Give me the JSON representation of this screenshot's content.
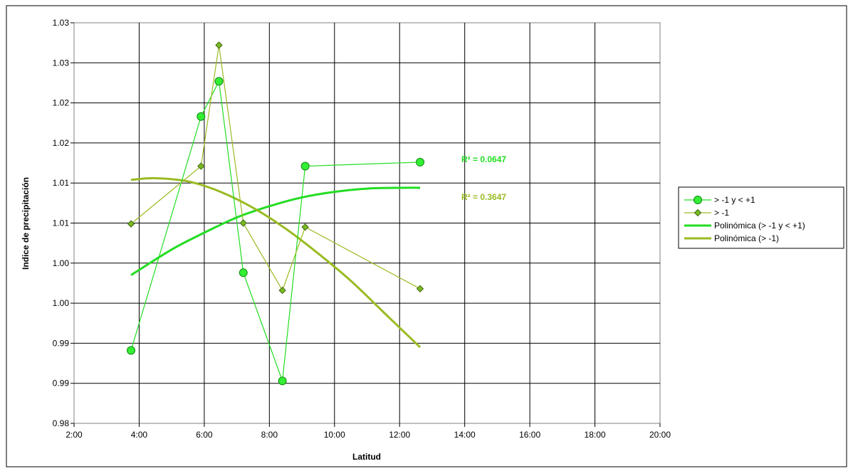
{
  "chart_data": {
    "type": "scatter",
    "xlabel": "Latitud",
    "ylabel": "Indice de precipitación",
    "xlim": [
      2,
      20
    ],
    "ylim": [
      0.98,
      1.03
    ],
    "x_ticks": [
      2,
      4,
      6,
      8,
      10,
      12,
      14,
      16,
      18,
      20
    ],
    "x_tick_labels": [
      "2:00",
      "4:00",
      "6:00",
      "8:00",
      "10:00",
      "12:00",
      "14:00",
      "16:00",
      "18:00",
      "20:00"
    ],
    "y_ticks": [
      0.98,
      0.985,
      0.99,
      0.995,
      1.0,
      1.005,
      1.01,
      1.015,
      1.02,
      1.025,
      1.03
    ],
    "y_tick_labels": [
      "0.98",
      "0.99",
      "0.99",
      "1.00",
      "1.00",
      "1.01",
      "1.01",
      "1.02",
      "1.02",
      "1.03",
      "1.03"
    ],
    "grid": true,
    "legend_position": "right",
    "series": [
      {
        "name": "> -1 y < +1",
        "marker": "circle",
        "color": "#22dd22",
        "marker_fill": "#33ee33",
        "marker_stroke": "#118811",
        "x": [
          3.75,
          5.9,
          6.45,
          7.2,
          8.4,
          9.1,
          12.63
        ],
        "y": [
          0.9891,
          1.0183,
          1.0227,
          0.9988,
          0.9853,
          1.0121,
          1.0126
        ]
      },
      {
        "name": "> -1",
        "marker": "diamond",
        "color": "#99bb22",
        "marker_fill": "#77bb22",
        "marker_stroke": "#446611",
        "x": [
          3.75,
          5.9,
          6.45,
          7.2,
          8.4,
          9.1,
          12.63
        ],
        "y": [
          1.0049,
          1.0121,
          1.0272,
          1.005,
          0.9966,
          1.0045,
          0.9968
        ]
      }
    ],
    "trendlines": [
      {
        "name": "Polinómica (> -1 y < +1)",
        "color": "#22dd22",
        "x": [
          3.75,
          5.0,
          6.0,
          7.0,
          8.0,
          9.0,
          10.0,
          11.0,
          12.0,
          12.63
        ],
        "y": [
          0.9985,
          1.0017,
          1.0038,
          1.0057,
          1.0071,
          1.0082,
          1.0089,
          1.0093,
          1.0094,
          1.0094
        ]
      },
      {
        "name": "Polinómica (> -1)",
        "color": "#99bb22",
        "x": [
          3.75,
          4.5,
          5.5,
          6.5,
          7.5,
          8.5,
          9.5,
          10.5,
          11.5,
          12.63
        ],
        "y": [
          1.0104,
          1.0106,
          1.0102,
          1.0089,
          1.0069,
          1.0043,
          1.0012,
          0.9978,
          0.9939,
          0.9895
        ]
      }
    ],
    "annotations": [
      {
        "text": "R² = 0.0647",
        "color": "#22dd22"
      },
      {
        "text": "R² = 0.3647",
        "color": "#99bb22"
      }
    ]
  }
}
